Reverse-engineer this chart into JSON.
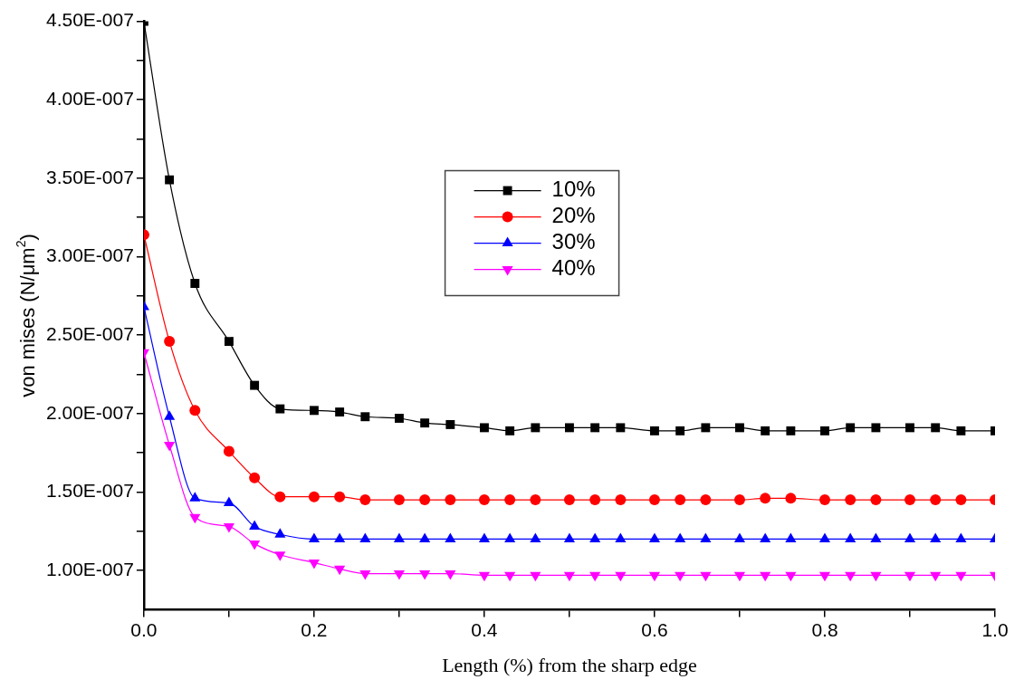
{
  "chart_data": {
    "type": "line",
    "xlabel": "Length (%) from the sharp edge",
    "ylabel": "von mises (N/μm$^{2}$)",
    "x": [
      0,
      0.03,
      0.06,
      0.1,
      0.13,
      0.16,
      0.2,
      0.23,
      0.26,
      0.3,
      0.33,
      0.36,
      0.4,
      0.43,
      0.46,
      0.5,
      0.53,
      0.56,
      0.6,
      0.63,
      0.66,
      0.7,
      0.73,
      0.76,
      0.8,
      0.83,
      0.86,
      0.9,
      0.93,
      0.96,
      1.0
    ],
    "series": [
      {
        "name": "10%",
        "color": "#000000",
        "marker": "square",
        "values": [
          4.5e-07,
          3.49e-07,
          2.83e-07,
          2.46e-07,
          2.18e-07,
          2.03e-07,
          2.02e-07,
          2.01e-07,
          1.98e-07,
          1.97e-07,
          1.94e-07,
          1.93e-07,
          1.91e-07,
          1.89e-07,
          1.91e-07,
          1.91e-07,
          1.91e-07,
          1.91e-07,
          1.89e-07,
          1.89e-07,
          1.91e-07,
          1.91e-07,
          1.89e-07,
          1.89e-07,
          1.89e-07,
          1.91e-07,
          1.91e-07,
          1.91e-07,
          1.91e-07,
          1.89e-07,
          1.89e-07
        ]
      },
      {
        "name": "20%",
        "color": "#ff0000",
        "marker": "circle",
        "values": [
          3.14e-07,
          2.46e-07,
          2.02e-07,
          1.76e-07,
          1.59e-07,
          1.47e-07,
          1.47e-07,
          1.47e-07,
          1.45e-07,
          1.45e-07,
          1.45e-07,
          1.45e-07,
          1.45e-07,
          1.45e-07,
          1.45e-07,
          1.45e-07,
          1.45e-07,
          1.45e-07,
          1.45e-07,
          1.45e-07,
          1.45e-07,
          1.45e-07,
          1.46e-07,
          1.46e-07,
          1.45e-07,
          1.45e-07,
          1.45e-07,
          1.45e-07,
          1.45e-07,
          1.45e-07,
          1.45e-07
        ]
      },
      {
        "name": "30%",
        "color": "#0000ff",
        "marker": "triangle",
        "values": [
          2.68e-07,
          1.98e-07,
          1.46e-07,
          1.43e-07,
          1.28e-07,
          1.23e-07,
          1.2e-07,
          1.2e-07,
          1.2e-07,
          1.2e-07,
          1.2e-07,
          1.2e-07,
          1.2e-07,
          1.2e-07,
          1.2e-07,
          1.2e-07,
          1.2e-07,
          1.2e-07,
          1.2e-07,
          1.2e-07,
          1.2e-07,
          1.2e-07,
          1.2e-07,
          1.2e-07,
          1.2e-07,
          1.2e-07,
          1.2e-07,
          1.2e-07,
          1.2e-07,
          1.2e-07,
          1.2e-07
        ]
      },
      {
        "name": "40%",
        "color": "#ff00ff",
        "marker": "triangle-down",
        "values": [
          2.39e-07,
          1.8e-07,
          1.34e-07,
          1.28e-07,
          1.17e-07,
          1.1e-07,
          1.05e-07,
          1.01e-07,
          9.8e-08,
          9.8e-08,
          9.8e-08,
          9.8e-08,
          9.7e-08,
          9.7e-08,
          9.7e-08,
          9.7e-08,
          9.7e-08,
          9.7e-08,
          9.7e-08,
          9.7e-08,
          9.7e-08,
          9.7e-08,
          9.7e-08,
          9.7e-08,
          9.7e-08,
          9.7e-08,
          9.7e-08,
          9.7e-08,
          9.7e-08,
          9.7e-08,
          9.7e-08
        ]
      }
    ],
    "xlim": [
      0,
      1
    ],
    "xticks": [
      {
        "value": 0,
        "label": "0.0"
      },
      {
        "value": 0.1,
        "label": null
      },
      {
        "value": 0.2,
        "label": "0.2"
      },
      {
        "value": 0.3,
        "label": null
      },
      {
        "value": 0.4,
        "label": "0.4"
      },
      {
        "value": 0.5,
        "label": null
      },
      {
        "value": 0.6,
        "label": "0.6"
      },
      {
        "value": 0.7,
        "label": null
      },
      {
        "value": 0.8,
        "label": "0.8"
      },
      {
        "value": 0.9,
        "label": null
      },
      {
        "value": 1,
        "label": "1.0"
      }
    ],
    "ylim": [
      7.5e-08,
      4.5e-07
    ],
    "yticks": [
      {
        "value": 1e-07,
        "label": "1.00E-007"
      },
      {
        "value": 1.25e-07,
        "label": null
      },
      {
        "value": 1.5e-07,
        "label": "1.50E-007"
      },
      {
        "value": 1.75e-07,
        "label": null
      },
      {
        "value": 2e-07,
        "label": "2.00E-007"
      },
      {
        "value": 2.25e-07,
        "label": null
      },
      {
        "value": 2.5e-07,
        "label": "2.50E-007"
      },
      {
        "value": 2.75e-07,
        "label": null
      },
      {
        "value": 3e-07,
        "label": "3.00E-007"
      },
      {
        "value": 3.25e-07,
        "label": null
      },
      {
        "value": 3.5e-07,
        "label": "3.50E-007"
      },
      {
        "value": 3.75e-07,
        "label": null
      },
      {
        "value": 4e-07,
        "label": "4.00E-007"
      },
      {
        "value": 4.25e-07,
        "label": null
      },
      {
        "value": 4.5e-07,
        "label": "4.50E-007"
      }
    ],
    "legend": "top",
    "grid": false
  }
}
